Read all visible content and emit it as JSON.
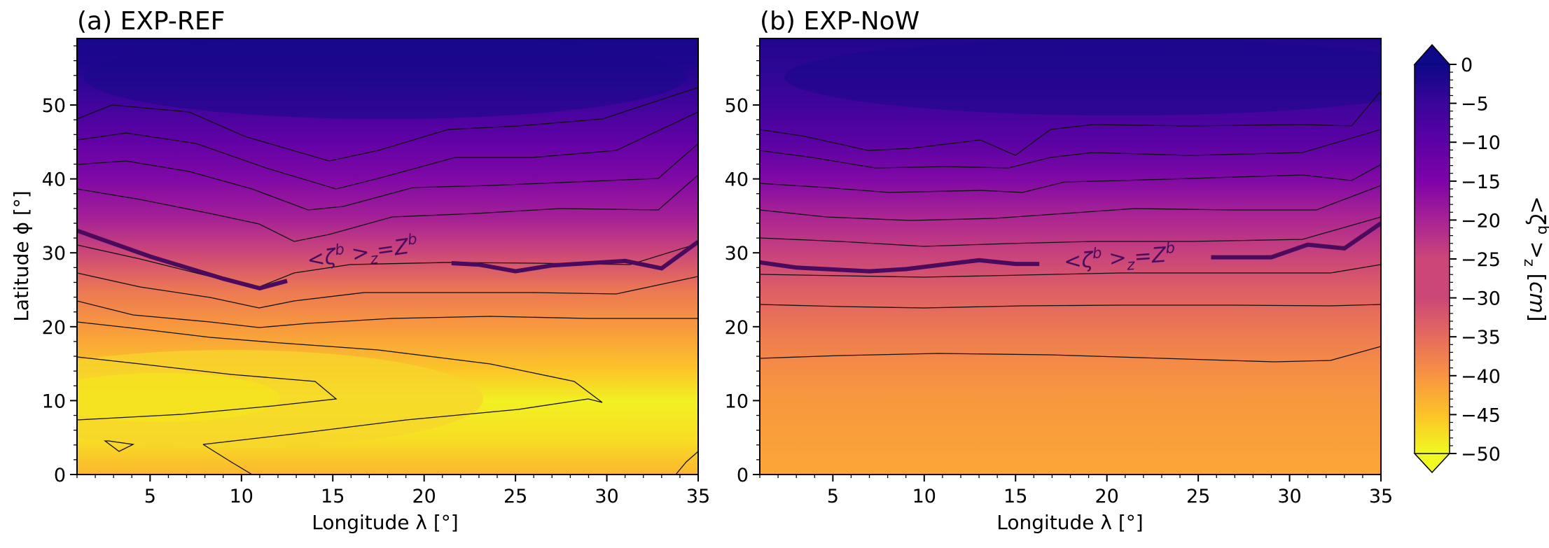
{
  "chart_data": [
    {
      "type": "heatmap",
      "title": "(a) EXP-REF",
      "xlabel": "Longitude λ [°]",
      "ylabel": "Latitude ϕ [°]",
      "xlim": [
        1,
        35
      ],
      "ylim": [
        0,
        59
      ],
      "xticks": [
        "5",
        "10",
        "15",
        "20",
        "25",
        "30",
        "35"
      ],
      "yticks": [
        "0",
        "10",
        "20",
        "30",
        "40",
        "50"
      ],
      "contour_label": "<ζ^b >_z = Z^b",
      "zero_wind_line": [
        [
          1,
          33
        ],
        [
          5,
          29.5
        ],
        [
          9,
          26.5
        ],
        [
          11,
          25.2
        ],
        [
          12.5,
          26.2
        ]
      ],
      "zero_wind_line_2": [
        [
          21.5,
          28.6
        ],
        [
          23,
          28.4
        ],
        [
          25,
          27.5
        ],
        [
          27,
          28.3
        ],
        [
          31,
          28.9
        ],
        [
          33,
          27.9
        ],
        [
          35,
          31.5
        ]
      ],
      "field_profile": [
        [
          0,
          -42
        ],
        [
          5,
          -47
        ],
        [
          10,
          -49
        ],
        [
          14,
          -44
        ],
        [
          20,
          -38
        ],
        [
          25,
          -33
        ],
        [
          30,
          -25
        ],
        [
          35,
          -18
        ],
        [
          40,
          -13
        ],
        [
          45,
          -9
        ],
        [
          50,
          -5
        ],
        [
          55,
          -2
        ],
        [
          59,
          -1
        ]
      ]
    },
    {
      "type": "heatmap",
      "title": "(b) EXP-NoW",
      "xlabel": "Longitude λ [°]",
      "ylabel": "",
      "xlim": [
        1,
        35
      ],
      "ylim": [
        0,
        59
      ],
      "xticks": [
        "5",
        "10",
        "15",
        "20",
        "25",
        "30",
        "35"
      ],
      "yticks": [
        "0",
        "10",
        "20",
        "30",
        "40",
        "50"
      ],
      "contour_label": "<ζ^b >_z = Z^b",
      "zero_wind_line": [
        [
          1,
          28.7
        ],
        [
          3,
          28
        ],
        [
          7,
          27.5
        ],
        [
          9,
          27.8
        ],
        [
          11,
          28.4
        ],
        [
          13,
          29
        ],
        [
          15,
          28.5
        ],
        [
          16.3,
          28.5
        ]
      ],
      "zero_wind_line_2": [
        [
          25.7,
          29.4
        ],
        [
          29,
          29.4
        ],
        [
          31,
          31.1
        ],
        [
          33,
          30.6
        ],
        [
          35,
          34
        ]
      ],
      "field_profile": [
        [
          0,
          -40
        ],
        [
          10,
          -38
        ],
        [
          15,
          -36
        ],
        [
          20,
          -33
        ],
        [
          25,
          -29
        ],
        [
          30,
          -24
        ],
        [
          35,
          -19
        ],
        [
          40,
          -13
        ],
        [
          45,
          -8
        ],
        [
          50,
          -5
        ],
        [
          55,
          -3
        ],
        [
          59,
          -2
        ]
      ]
    }
  ],
  "colorbar": {
    "label": "<ζ^b >_z [cm]",
    "range": [
      -50,
      0
    ],
    "ticks": [
      "0",
      "−5",
      "−10",
      "−15",
      "−20",
      "−25",
      "−30",
      "−35",
      "−40",
      "−45",
      "−50"
    ],
    "colormap": "plasma",
    "extend": "both"
  }
}
